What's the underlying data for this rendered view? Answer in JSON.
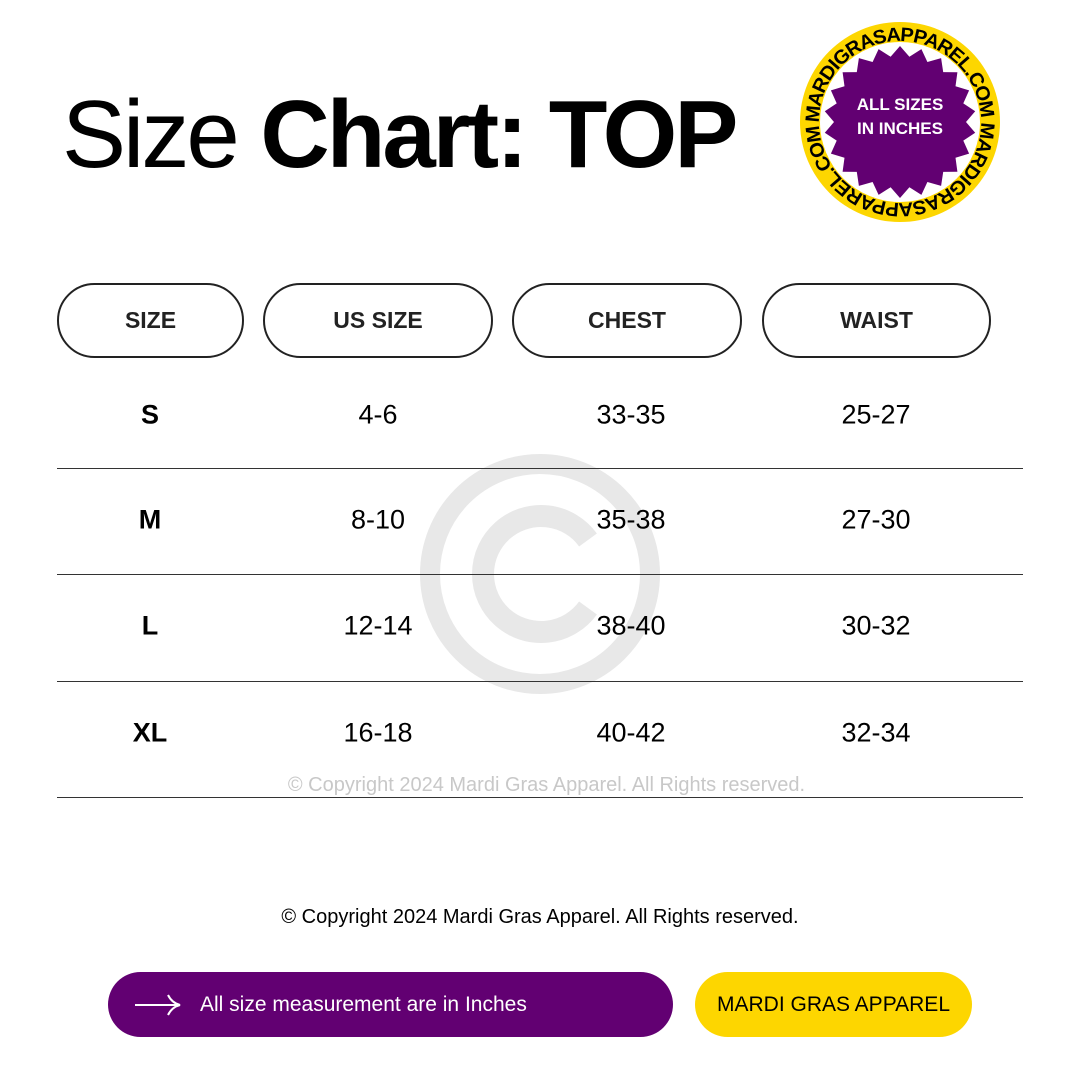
{
  "title": {
    "light": "Size ",
    "bold": "Chart: TOP"
  },
  "badge": {
    "ring_text": "MARDIGRASAPPAREL.COM MARDIGRASAPPAREL.COM ",
    "line1": "ALL SIZES",
    "line2": "IN INCHES",
    "ring_color": "#fdd600",
    "star_color": "#620072"
  },
  "table": {
    "headers": [
      "SIZE",
      "US SIZE",
      "CHEST",
      "WAIST"
    ],
    "rows": [
      [
        "S",
        "4-6",
        "33-35",
        "25-27"
      ],
      [
        "M",
        "8-10",
        "35-38",
        "27-30"
      ],
      [
        "L",
        "12-14",
        "38-40",
        "30-32"
      ],
      [
        "XL",
        "16-18",
        "40-42",
        "32-34"
      ]
    ]
  },
  "watermark": {
    "icon": "copyright-icon",
    "text": "© Copyright 2024 Mardi Gras Apparel. All Rights reserved."
  },
  "copyright": "© Copyright 2024 Mardi Gras Apparel. All Rights reserved.",
  "footer": {
    "note": "All size measurement are in Inches",
    "note_icon": "arrow-right-icon",
    "brand": "MARDI GRAS APPAREL",
    "purple": "#620072",
    "yellow": "#fdd600"
  }
}
